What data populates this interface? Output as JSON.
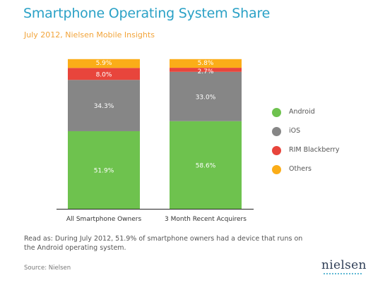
{
  "header": {
    "title": "Smartphone Operating System Share",
    "subtitle": "July 2012, Nielsen Mobile Insights"
  },
  "chart_data": {
    "type": "bar",
    "stacked": true,
    "categories": [
      "All Smartphone Owners",
      "3 Month Recent Acquirers"
    ],
    "series": [
      {
        "name": "Android",
        "color": "#6ec24e",
        "values": [
          51.9,
          58.6
        ],
        "labels": [
          "51.9%",
          "58.6%"
        ]
      },
      {
        "name": "iOS",
        "color": "#868686",
        "values": [
          34.3,
          33.0
        ],
        "labels": [
          "34.3%",
          "33.0%"
        ]
      },
      {
        "name": "RIM Blackberry",
        "color": "#e8453c",
        "values": [
          8.0,
          2.7
        ],
        "labels": [
          "8.0%",
          "2.7%"
        ]
      },
      {
        "name": "Others",
        "color": "#fbad18",
        "values": [
          5.9,
          5.8
        ],
        "labels": [
          "5.9%",
          "5.8%"
        ]
      }
    ],
    "ylim": [
      0,
      100
    ],
    "grid": false,
    "legend_position": "right"
  },
  "footer": {
    "note": "Read as: During July 2012, 51.9% of smartphone owners had a device that runs on the Android operating system.",
    "source": "Source: Nielsen",
    "logo": "nielsen"
  }
}
